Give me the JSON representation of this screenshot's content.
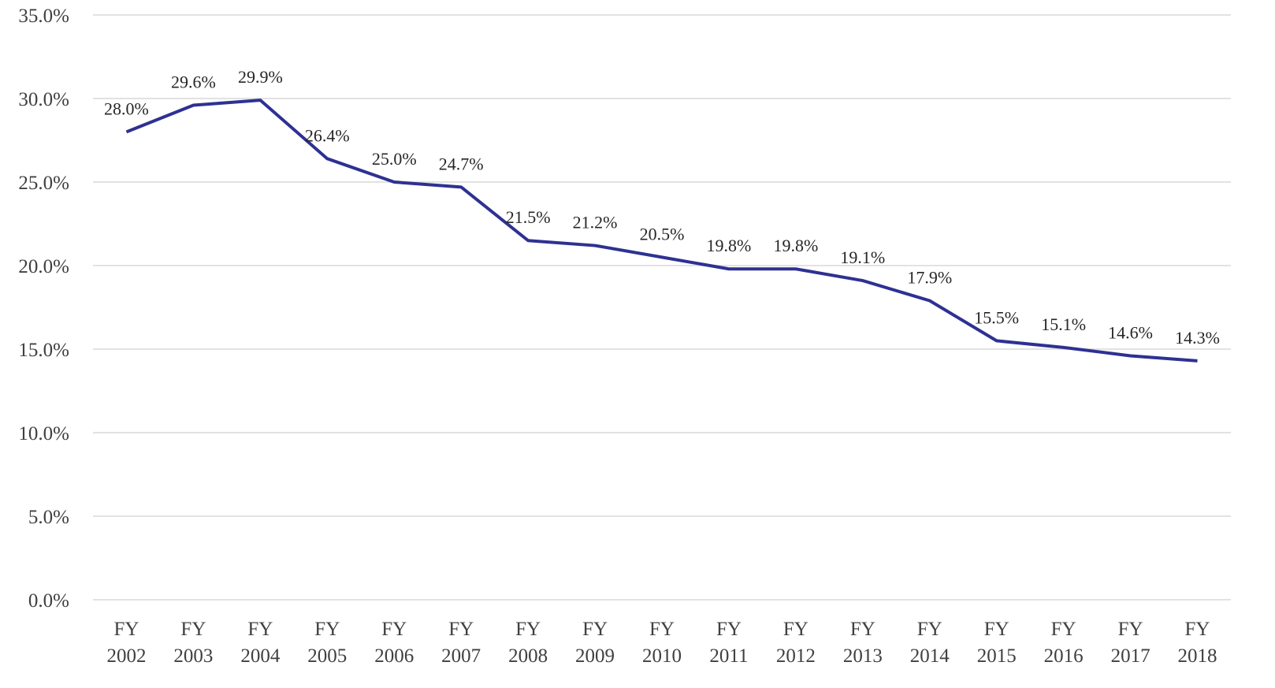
{
  "chart_data": {
    "type": "line",
    "categories": [
      "FY 2002",
      "FY 2003",
      "FY 2004",
      "FY 2005",
      "FY 2006",
      "FY 2007",
      "FY 2008",
      "FY 2009",
      "FY 2010",
      "FY 2011",
      "FY 2012",
      "FY 2013",
      "FY 2014",
      "FY 2015",
      "FY 2016",
      "FY 2017",
      "FY 2018"
    ],
    "values": [
      28.0,
      29.6,
      29.9,
      26.4,
      25.0,
      24.7,
      21.5,
      21.2,
      20.5,
      19.8,
      19.8,
      19.1,
      17.9,
      15.5,
      15.1,
      14.6,
      14.3
    ],
    "value_labels": [
      "28.0%",
      "29.6%",
      "29.9%",
      "26.4%",
      "25.0%",
      "24.7%",
      "21.5%",
      "21.2%",
      "20.5%",
      "19.8%",
      "19.8%",
      "19.1%",
      "17.9%",
      "15.5%",
      "15.1%",
      "14.6%",
      "14.3%"
    ],
    "color": "#2e3192",
    "ylim": [
      0,
      35
    ],
    "yticks": [
      {
        "value": 0,
        "label": "0.0%"
      },
      {
        "value": 5,
        "label": "5.0%"
      },
      {
        "value": 10,
        "label": "10.0%"
      },
      {
        "value": 15,
        "label": "15.0%"
      },
      {
        "value": 20,
        "label": "20.0%"
      },
      {
        "value": 25,
        "label": "25.0%"
      },
      {
        "value": 30,
        "label": "30.0%"
      },
      {
        "value": 35,
        "label": "35.0%"
      }
    ],
    "grid": true
  }
}
